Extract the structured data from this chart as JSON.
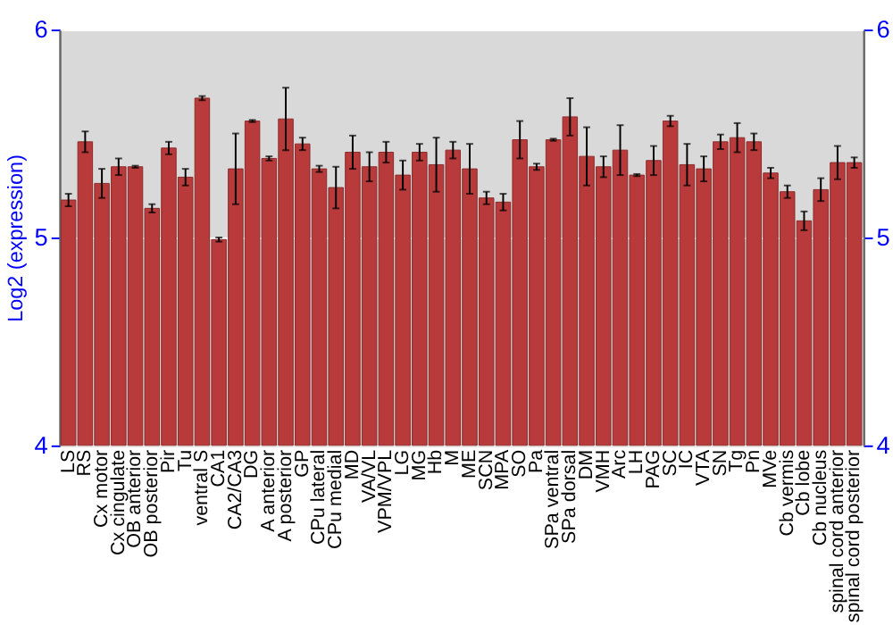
{
  "chart_data": {
    "type": "bar",
    "ylabel": "Log2 (expression)",
    "categories": [
      "LS",
      "RS",
      "Cx motor",
      "Cx cingulate",
      "OB anterior",
      "OB posterior",
      "Pir",
      "Tu",
      "ventral S",
      "CA1",
      "CA2/CA3",
      "DG",
      "A anterior",
      "A posterior",
      "GP",
      "CPu lateral",
      "CPu medial",
      "MD",
      "VA/VL",
      "VPM/VPL",
      "LG",
      "MG",
      "Hb",
      "M",
      "ME",
      "SCN",
      "MPA",
      "SO",
      "Pa",
      "SPa ventral",
      "SPa dorsal",
      "DM",
      "VMH",
      "Arc",
      "LH",
      "PAG",
      "SC",
      "IC",
      "VTA",
      "SN",
      "Tg",
      "Pn",
      "MVe",
      "Cb vermis",
      "Cb lobe",
      "Cb nucleus",
      "spinal cord anterior",
      "spinal cord posterior"
    ],
    "series": [
      {
        "color": "#b83a3a",
        "values": [
          5.18,
          5.46,
          5.26,
          5.34,
          5.34,
          5.14,
          5.43,
          5.29,
          5.67,
          4.99,
          5.33,
          5.56,
          5.38,
          5.57,
          5.45,
          5.33,
          5.24,
          5.41,
          5.34,
          5.41,
          5.3,
          5.41,
          5.35,
          5.42,
          5.33,
          5.19,
          5.17,
          5.47,
          5.34,
          5.47,
          5.58,
          5.39,
          5.34,
          5.42,
          5.3,
          5.37,
          5.56,
          5.35,
          5.33,
          5.46,
          5.48,
          5.46,
          5.31,
          5.22,
          5.08,
          5.23,
          5.36,
          5.36
        ],
        "errors": [
          0.03,
          0.05,
          0.07,
          0.04,
          0.005,
          0.02,
          0.03,
          0.04,
          0.01,
          0.01,
          0.17,
          0.005,
          0.01,
          0.15,
          0.03,
          0.015,
          0.1,
          0.08,
          0.07,
          0.05,
          0.07,
          0.04,
          0.13,
          0.04,
          0.12,
          0.03,
          0.04,
          0.09,
          0.015,
          0.005,
          0.09,
          0.14,
          0.05,
          0.12,
          0.005,
          0.07,
          0.025,
          0.1,
          0.06,
          0.035,
          0.07,
          0.04,
          0.025,
          0.03,
          0.045,
          0.055,
          0.08,
          0.025
        ]
      }
    ],
    "ylim": [
      4,
      6
    ],
    "yticks": [
      4,
      5,
      6
    ],
    "y2lim": [
      4,
      6
    ],
    "y2ticks": [
      4,
      5,
      6
    ],
    "grid": "y"
  }
}
